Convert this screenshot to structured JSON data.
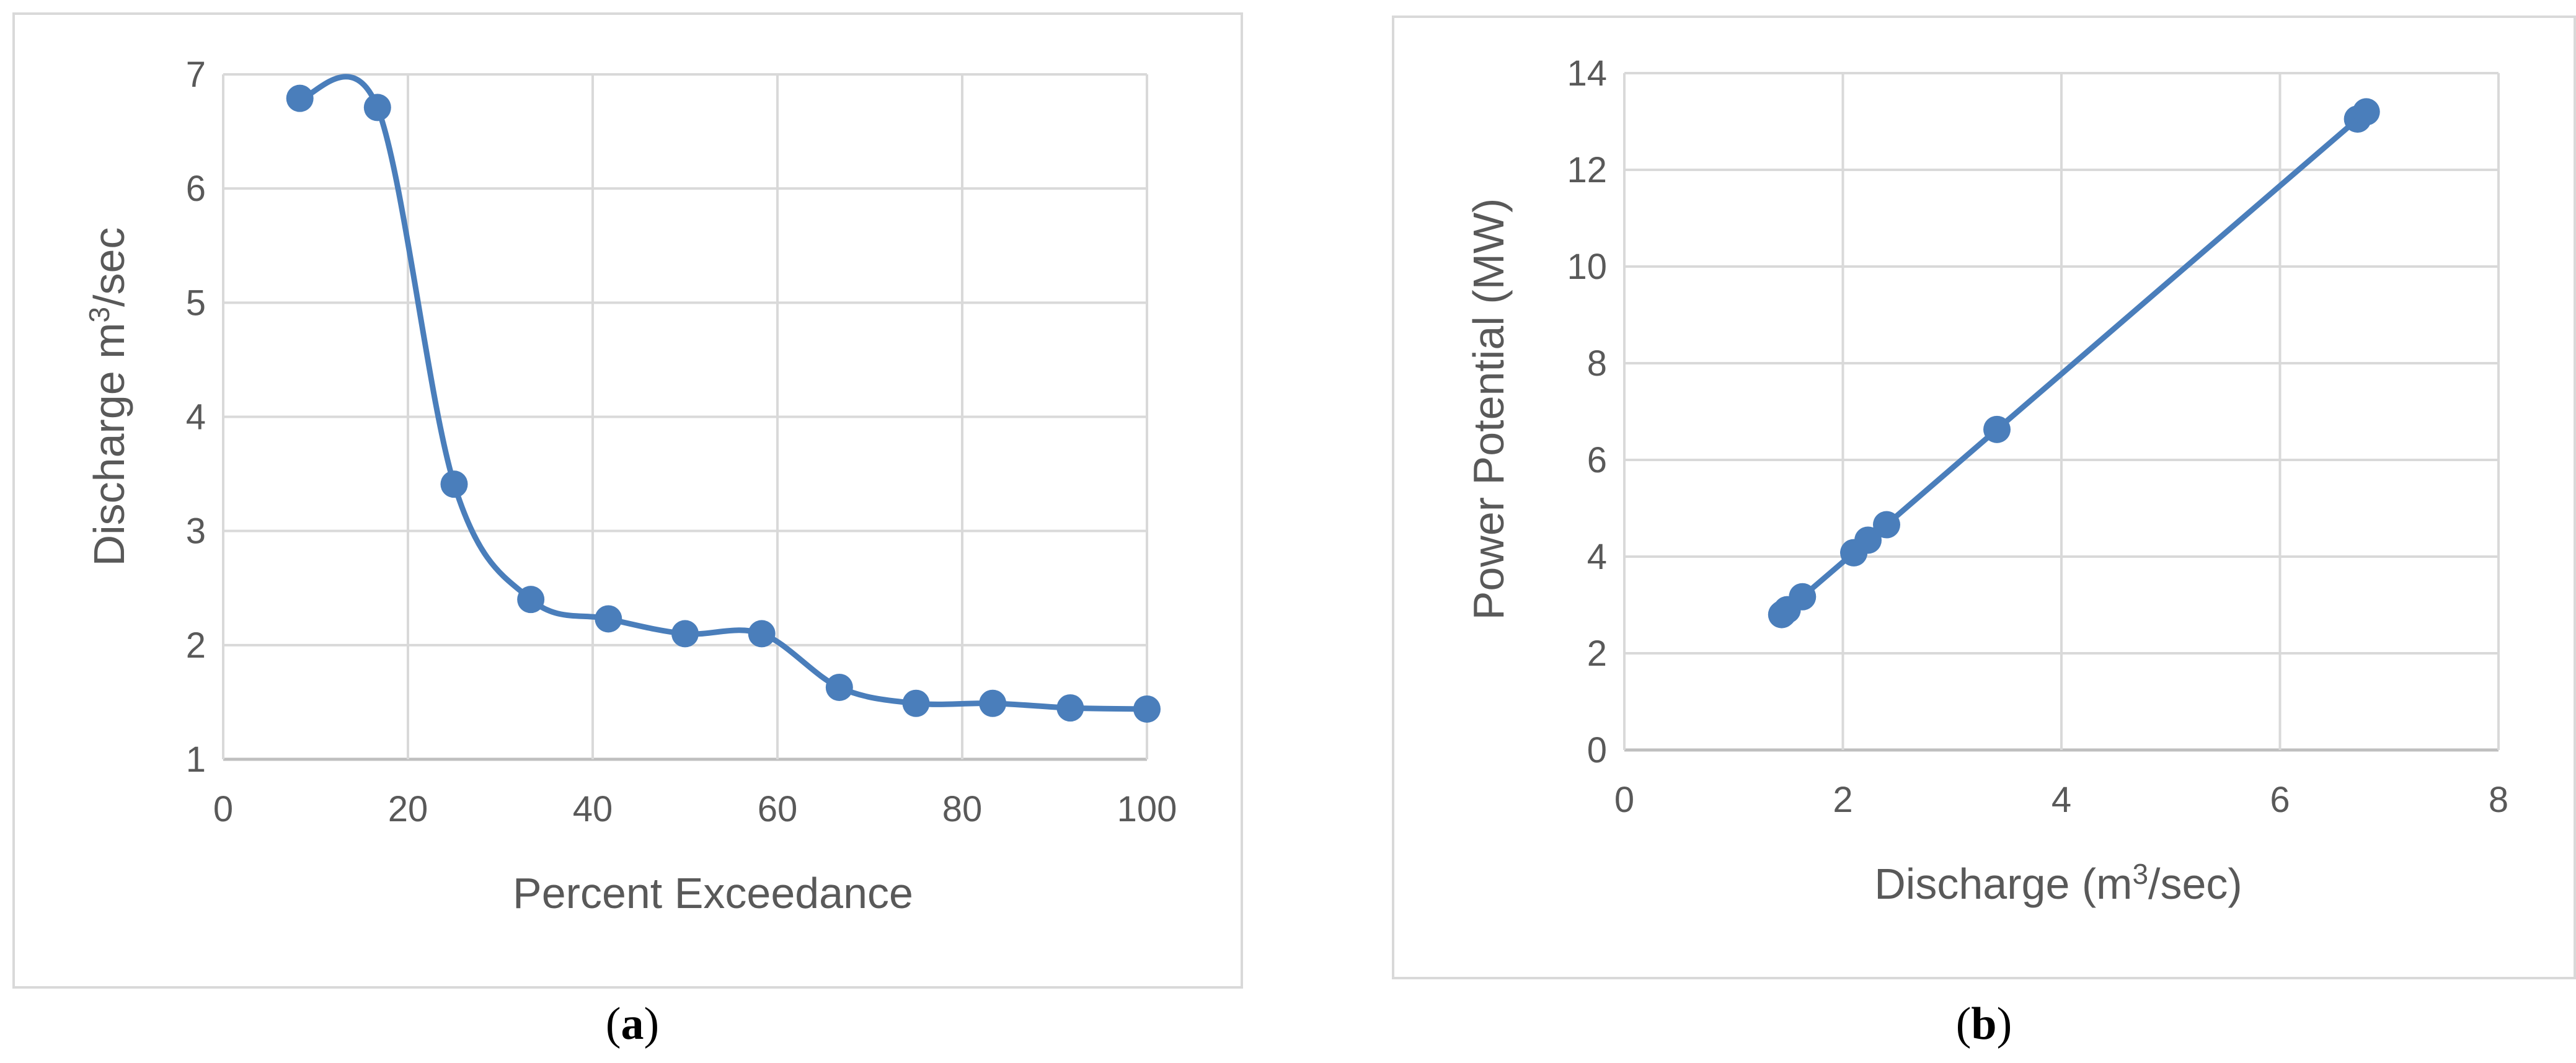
{
  "captions": {
    "a": "a",
    "b": "b"
  },
  "chart_data": [
    {
      "type": "line",
      "panel": "a",
      "xlabel": "Percent Exceedance",
      "ylabel_main": "Discharge m",
      "ylabel_sup": "3",
      "ylabel_tail": "/sec",
      "xlim": [
        0,
        100
      ],
      "ylim": [
        1,
        7
      ],
      "xticks": [
        0,
        20,
        40,
        60,
        80,
        100
      ],
      "yticks": [
        1,
        2,
        3,
        4,
        5,
        6,
        7
      ],
      "grid": true,
      "smooth": true,
      "color": "#4a7ebb",
      "series": [
        {
          "x": [
            8.3,
            16.7,
            25.0,
            33.3,
            41.7,
            50.0,
            58.3,
            66.7,
            75.0,
            83.3,
            91.7,
            100.0
          ],
          "y": [
            6.79,
            6.71,
            3.41,
            2.4,
            2.23,
            2.1,
            2.1,
            1.63,
            1.49,
            1.49,
            1.45,
            1.44
          ]
        }
      ]
    },
    {
      "type": "line",
      "panel": "b",
      "xlabel_main": "Discharge (m",
      "xlabel_sup": "3",
      "xlabel_tail": "/sec)",
      "ylabel": "Power Potential (MW)",
      "xlim": [
        0,
        8
      ],
      "ylim": [
        0,
        14
      ],
      "xticks": [
        0,
        2,
        4,
        6,
        8
      ],
      "yticks": [
        0,
        2,
        4,
        6,
        8,
        10,
        12,
        14
      ],
      "grid": true,
      "smooth": false,
      "color": "#4a7ebb",
      "series": [
        {
          "x": [
            1.44,
            1.45,
            1.49,
            1.49,
            1.63,
            2.1,
            2.1,
            2.23,
            2.4,
            3.41,
            6.71,
            6.79
          ],
          "y": [
            2.8,
            2.82,
            2.9,
            2.9,
            3.17,
            4.08,
            4.08,
            4.34,
            4.66,
            6.63,
            13.05,
            13.2
          ]
        }
      ]
    }
  ]
}
